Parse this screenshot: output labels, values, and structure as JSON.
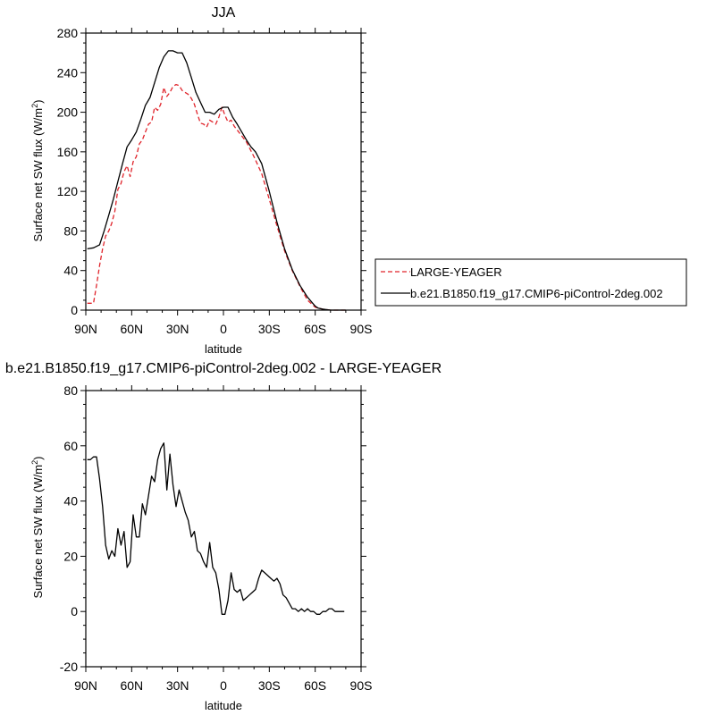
{
  "chart_data": [
    {
      "type": "line",
      "title": "JJA",
      "xlabel": "latitude",
      "ylabel": "Surface net SW flux",
      "ylabel_unit": "(W/m",
      "ylabel_unit_sup": "2",
      "ylabel_unit_close": ")",
      "xlim": [
        90,
        -90
      ],
      "ylim": [
        0,
        280
      ],
      "x_ticks": [
        90,
        60,
        30,
        0,
        -30,
        -60,
        -90
      ],
      "x_tick_labels": [
        "90N",
        "60N",
        "30N",
        "0",
        "30S",
        "60S",
        "90S"
      ],
      "y_ticks": [
        0,
        40,
        80,
        120,
        160,
        200,
        240,
        280
      ],
      "y_tick_labels": [
        "0",
        "40",
        "80",
        "120",
        "160",
        "200",
        "240",
        "280"
      ],
      "legend_position": "right",
      "series": [
        {
          "name": "LARGE-YEAGER",
          "color": "#e0242b",
          "dash": "dashed",
          "x": [
            89,
            85,
            83,
            81,
            79,
            77,
            75,
            73,
            71,
            69,
            67,
            65,
            63,
            61,
            59,
            57,
            55,
            53,
            51,
            49,
            47,
            45,
            43,
            41,
            39,
            37,
            35,
            33,
            31,
            29,
            27,
            25,
            23,
            21,
            19,
            17,
            15,
            13,
            11,
            9,
            7,
            5,
            3,
            1,
            -1,
            -3,
            -5,
            -7,
            -9,
            -11,
            -15,
            -20,
            -25,
            -30,
            -35,
            -40,
            -45,
            -50,
            -55,
            -60,
            -62,
            -65,
            -70,
            -75,
            -80
          ],
          "y": [
            7,
            7,
            25,
            45,
            62,
            75,
            80,
            88,
            100,
            122,
            128,
            140,
            146,
            135,
            150,
            155,
            168,
            172,
            180,
            188,
            190,
            205,
            202,
            208,
            225,
            216,
            220,
            226,
            228,
            227,
            222,
            220,
            218,
            214,
            208,
            198,
            189,
            188,
            185,
            192,
            190,
            188,
            195,
            205,
            197,
            190,
            192,
            186,
            182,
            178,
            170,
            155,
            138,
            112,
            85,
            60,
            40,
            24,
            10,
            3,
            2,
            1,
            0,
            0,
            0
          ]
        },
        {
          "name": "b.e21.B1850.f19_g17.CMIP6-piControl-2deg.002",
          "color": "#000000",
          "dash": "solid",
          "x": [
            89,
            85,
            81,
            78,
            75,
            72,
            69,
            66,
            63,
            60,
            57,
            54,
            51,
            48,
            45,
            42,
            39,
            36,
            33,
            30,
            27,
            24,
            21,
            18,
            15,
            12,
            9,
            6,
            3,
            0,
            -3,
            -6,
            -9,
            -12,
            -15,
            -18,
            -21,
            -25,
            -30,
            -35,
            -40,
            -45,
            -50,
            -55,
            -60,
            -62,
            -65,
            -70,
            -75,
            -80
          ],
          "y": [
            62,
            63,
            66,
            80,
            96,
            112,
            130,
            148,
            165,
            172,
            180,
            193,
            207,
            215,
            230,
            245,
            256,
            262,
            262,
            260,
            260,
            250,
            235,
            220,
            210,
            200,
            200,
            198,
            203,
            205,
            205,
            195,
            188,
            180,
            172,
            165,
            160,
            148,
            120,
            89,
            62,
            41,
            25,
            13,
            4,
            2,
            1,
            0,
            0,
            0
          ]
        }
      ]
    },
    {
      "type": "line",
      "title": "b.e21.B1850.f19_g17.CMIP6-piControl-2deg.002 - LARGE-YEAGER",
      "xlabel": "latitude",
      "ylabel": "Surface net SW flux",
      "ylabel_unit": "(W/m",
      "ylabel_unit_sup": "2",
      "ylabel_unit_close": ")",
      "xlim": [
        90,
        -90
      ],
      "ylim": [
        -20,
        80
      ],
      "x_ticks": [
        90,
        60,
        30,
        0,
        -30,
        -60,
        -90
      ],
      "x_tick_labels": [
        "90N",
        "60N",
        "30N",
        "0",
        "30S",
        "60S",
        "90S"
      ],
      "y_ticks": [
        -20,
        0,
        20,
        40,
        60,
        80
      ],
      "y_tick_labels": [
        "-20",
        "0",
        "20",
        "40",
        "60",
        "80"
      ],
      "series": [
        {
          "color": "#000000",
          "dash": "solid",
          "x": [
            89,
            87,
            85,
            83,
            81,
            79,
            77,
            75,
            73,
            71,
            69,
            67,
            65,
            63,
            61,
            59,
            57,
            55,
            53,
            51,
            49,
            47,
            45,
            43,
            41,
            39,
            37,
            35,
            33,
            31,
            29,
            27,
            25,
            23,
            21,
            19,
            17,
            15,
            13,
            11,
            9,
            7,
            5,
            3,
            1,
            -1,
            -3,
            -5,
            -7,
            -9,
            -11,
            -13,
            -15,
            -17,
            -19,
            -21,
            -23,
            -25,
            -27,
            -29,
            -31,
            -33,
            -35,
            -37,
            -39,
            -41,
            -43,
            -45,
            -47,
            -49,
            -51,
            -53,
            -55,
            -57,
            -59,
            -61,
            -63,
            -65,
            -67,
            -69,
            -71,
            -73,
            -75,
            -77,
            -79
          ],
          "y": [
            55,
            55,
            56,
            56,
            48,
            38,
            24,
            19,
            22,
            20,
            30,
            24,
            29,
            16,
            18,
            35,
            27,
            27,
            39,
            35,
            42,
            49,
            47,
            55,
            59,
            61,
            44,
            57,
            46,
            38,
            44,
            40,
            36,
            33,
            27,
            29,
            22,
            21,
            18,
            16,
            25,
            16,
            14,
            8,
            -1,
            -1,
            4,
            14,
            8,
            7,
            8,
            4,
            5,
            6,
            7,
            8,
            12,
            15,
            14,
            13,
            12,
            11,
            12,
            10,
            6,
            5,
            3,
            1,
            1,
            0,
            1,
            0,
            1,
            0,
            0,
            -1,
            -1,
            0,
            0,
            1,
            1,
            0,
            0,
            0,
            0
          ]
        }
      ]
    }
  ]
}
